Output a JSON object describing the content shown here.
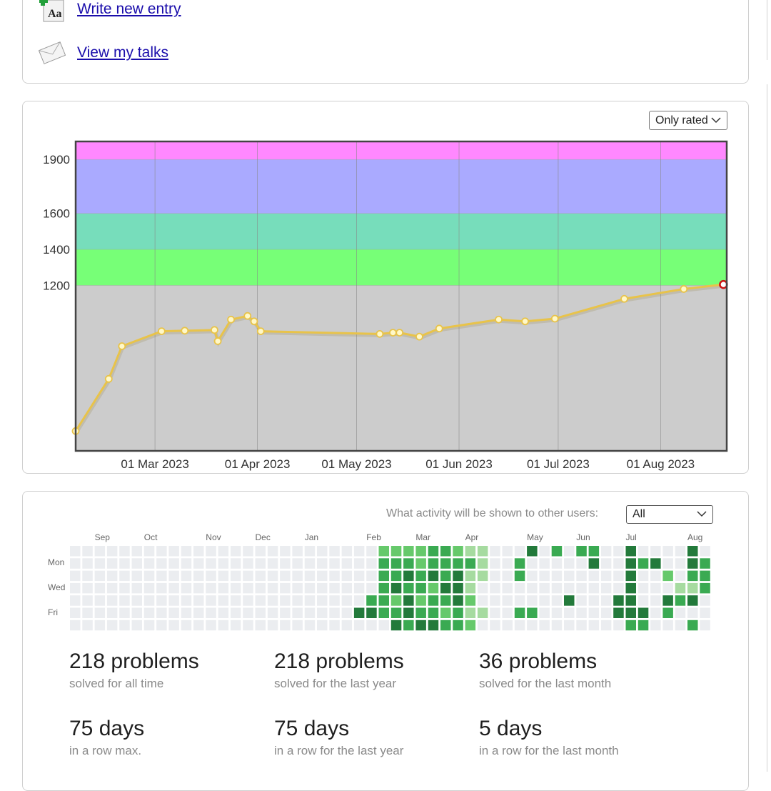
{
  "links": [
    {
      "label": "Write new entry",
      "icon": "write-entry-icon"
    },
    {
      "label": "View my talks",
      "icon": "talks-envelope-icon"
    }
  ],
  "rating_filter": {
    "selected": "Only rated"
  },
  "chart_data": {
    "type": "line",
    "title": "",
    "xlabel": "",
    "ylabel": "",
    "x_ticks": [
      "01 Mar 2023",
      "01 Apr 2023",
      "01 May 2023",
      "01 Jun 2023",
      "01 Jul 2023",
      "01 Aug 2023"
    ],
    "x_tick_dates": [
      "2023-03-01",
      "2023-04-01",
      "2023-05-01",
      "2023-06-01",
      "2023-07-01",
      "2023-08-01"
    ],
    "xlim": [
      "2023-02-05",
      "2023-08-21"
    ],
    "y_ticks": [
      1200,
      1400,
      1600,
      1900
    ],
    "ylim": [
      280,
      2000
    ],
    "bands": [
      {
        "from": 280,
        "to": 1200,
        "color": "#cccccc"
      },
      {
        "from": 1200,
        "to": 1400,
        "color": "#77ff77"
      },
      {
        "from": 1400,
        "to": 1600,
        "color": "#77ddbb"
      },
      {
        "from": 1600,
        "to": 1900,
        "color": "#aaaaff"
      },
      {
        "from": 1900,
        "to": 2000,
        "color": "#ff88ff"
      }
    ],
    "line_color": "#e8c34a",
    "grid": true,
    "series": [
      {
        "points": [
          {
            "x": "2023-02-05",
            "y": 390
          },
          {
            "x": "2023-02-15",
            "y": 680
          },
          {
            "x": "2023-02-19",
            "y": 862
          },
          {
            "x": "2023-03-03",
            "y": 945
          },
          {
            "x": "2023-03-10",
            "y": 948
          },
          {
            "x": "2023-03-19",
            "y": 952
          },
          {
            "x": "2023-03-20",
            "y": 890
          },
          {
            "x": "2023-03-24",
            "y": 1010
          },
          {
            "x": "2023-03-29",
            "y": 1030
          },
          {
            "x": "2023-03-31",
            "y": 1000
          },
          {
            "x": "2023-04-02",
            "y": 945
          },
          {
            "x": "2023-05-08",
            "y": 930
          },
          {
            "x": "2023-05-12",
            "y": 937
          },
          {
            "x": "2023-05-14",
            "y": 937
          },
          {
            "x": "2023-05-20",
            "y": 915
          },
          {
            "x": "2023-05-26",
            "y": 960
          },
          {
            "x": "2023-06-13",
            "y": 1010
          },
          {
            "x": "2023-06-21",
            "y": 1000
          },
          {
            "x": "2023-06-30",
            "y": 1015
          },
          {
            "x": "2023-07-21",
            "y": 1125
          },
          {
            "x": "2023-08-08",
            "y": 1180
          },
          {
            "x": "2023-08-20",
            "y": 1205
          }
        ]
      }
    ]
  },
  "activity": {
    "visibility_label": "What activity will be shown to other users:",
    "visibility_value": "All",
    "months": [
      "Sep",
      "Oct",
      "Nov",
      "Dec",
      "Jan",
      "Feb",
      "Mar",
      "Apr",
      "May",
      "Jun",
      "Jul",
      "Aug"
    ],
    "days": [
      "Mon",
      "Wed",
      "Fri"
    ],
    "colors": [
      "#ebedf0",
      "#a6dba0",
      "#66c96b",
      "#3aaa52",
      "#237a3b"
    ],
    "grid": [
      "0000000000000000000000000000000000000000000000000000",
      "0000000000000000000000000000000000000000000000000000",
      "0000000000000000000000000000000000000000000000000000",
      "0000000000000000000000000000000000000000000000000000",
      "0000000000000000000000000000000000000000000000000000",
      "0000000000000000000000000000000000000000000000000000",
      "0000000000000000000000000000000000000000000000000000",
      "0000000000000000000000000000000000000000000000000000",
      "0000000000000000000000000000000000000000000000000000",
      "0000000000000000000000000000000000000000000000000000",
      "0000000000000000000000000000000000000000000000000000",
      "0000000000000000000000000000000000000000000000000000",
      "0000000000000000000000000000000000000000000000000000",
      "0000000000000000000000000000000000000000000000000000",
      "0000000000000000000000000000000000000000000000000000",
      "0000000000000000000000000000000000000000000000000000",
      "0000000000000000000000000000000000000000000000000000",
      "0000000000000000000000000000000000000000000000000000",
      "0000000000000000000000000000000000000000000000000000",
      "0000000000000000000000000000000000000000000000000000",
      "0000000000000000000000000000000000000000000000000000",
      "0000000000000000000000000000000000000000000000000000",
      "0000000000000000000000000000000000000000000000000000",
      "0000040000000000000000000000000000000000000000000000",
      "0000340000000000000000000000000000000000000000000000",
      "2333330000000000000000000000000000000000000000000000",
      "2334234000000000000000000000000000000000000000000000",
      "2343443000000000000000000000000000000000000000000000",
      "2233234000000000000000000000000000000000000000000000",
      "3342334000000000000000000000000000000000000000000000",
      "3334323000000000000000000000000000000000000000000000",
      "2344433000000000000000000000000000000000000000000000",
      "1311212000000000000000000000000000000000000000000000",
      "1110010000000000000000000000000000000000000000000000",
      "0000000000000000000000000000000000000000000000000000",
      "0000000000000000000000000000000000000000000000000000",
      "0330030000000000000000000000000000000000000000000000",
      "4000030000000000000000000000000000000000000000000000",
      "0000000000000000000000000000000000000000000000000000",
      "3000000000000000000000000000000000000000000000000000",
      "0000400000000000000000000000000000000000000000000000",
      "3000000000000000000000000000000000000000000000000000",
      "3400000000000000000000000000000000000000000000000000",
      "0000000000000000000000000000000000000000000000000000",
      "0000440000000000000000000000000000000000000000000000",
      "4444443000000000000000000000000000000000000000000000",
      "0300043000000000000000000000000000000000000000000000",
      "0400000000000000000000000000000000000000000000000000",
      "0020430000000000000000000000000000000000000000000000",
      "0001300000000000000000000000000000000000000000000000",
      "4431403000000000000000000000000000000000000000000000",
      "0333000000000000000000000000000000000000000000000000"
    ]
  },
  "stats": [
    {
      "value": "218 problems",
      "caption": "solved for all time"
    },
    {
      "value": "218 problems",
      "caption": "solved for the last year"
    },
    {
      "value": "36 problems",
      "caption": "solved for the last month"
    },
    {
      "value": "75 days",
      "caption": "in a row max."
    },
    {
      "value": "75 days",
      "caption": "in a row for the last year"
    },
    {
      "value": "5 days",
      "caption": "in a row for the last month"
    }
  ]
}
